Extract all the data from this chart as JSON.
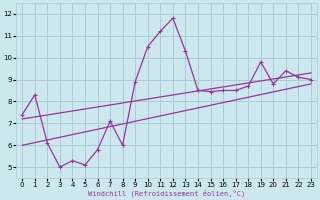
{
  "xlabel": "Windchill (Refroidissement éolien,°C)",
  "background_color": "#cce8ee",
  "grid_color": "#aaccd4",
  "line_color": "#993399",
  "xlim": [
    -0.5,
    23.5
  ],
  "ylim": [
    4.5,
    12.5
  ],
  "xticks": [
    0,
    1,
    2,
    3,
    4,
    5,
    6,
    7,
    8,
    9,
    10,
    11,
    12,
    13,
    14,
    15,
    16,
    17,
    18,
    19,
    20,
    21,
    22,
    23
  ],
  "yticks": [
    5,
    6,
    7,
    8,
    9,
    10,
    11,
    12
  ],
  "line1_x": [
    0,
    1,
    2,
    3,
    4,
    5,
    6,
    7,
    8,
    9,
    10,
    11,
    12,
    13,
    14,
    15,
    16,
    17,
    18,
    19,
    20,
    21,
    22,
    23
  ],
  "line1_y": [
    7.4,
    8.3,
    6.1,
    5.0,
    5.3,
    5.1,
    5.8,
    7.1,
    6.0,
    8.9,
    10.5,
    11.2,
    11.8,
    10.3,
    8.5,
    8.45,
    8.5,
    8.5,
    8.7,
    9.8,
    8.8,
    9.4,
    9.1,
    9.0
  ],
  "line2_x": [
    0,
    23
  ],
  "line2_y": [
    6.0,
    8.8
  ],
  "line3_x": [
    0,
    23
  ],
  "line3_y": [
    7.2,
    9.3
  ]
}
